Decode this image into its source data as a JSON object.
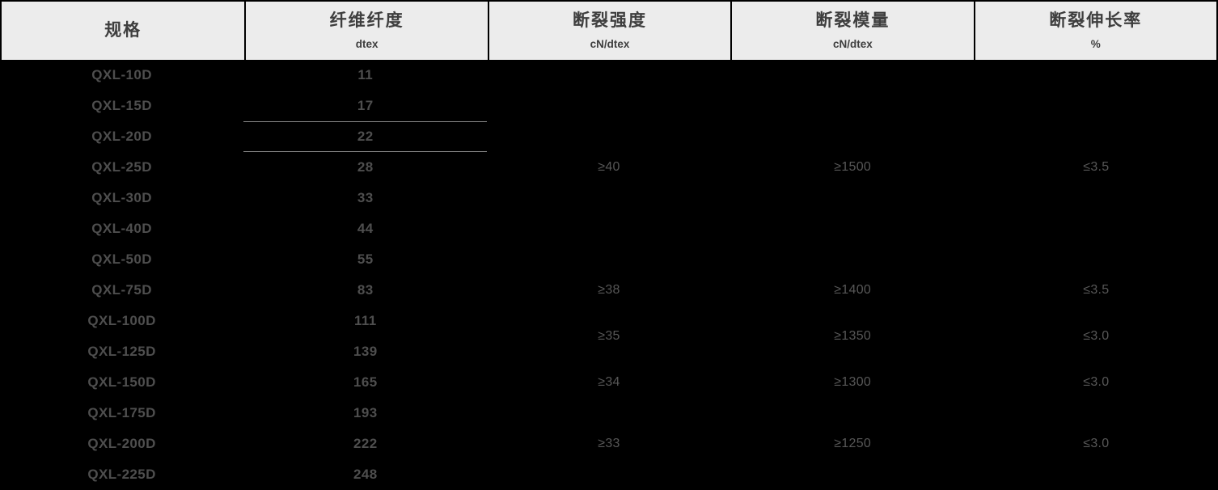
{
  "table": {
    "columns": [
      {
        "title": "规格",
        "unit": ""
      },
      {
        "title": "纤维纤度",
        "unit": "dtex"
      },
      {
        "title": "断裂强度",
        "unit": "cN/dtex"
      },
      {
        "title": "断裂模量",
        "unit": "cN/dtex"
      },
      {
        "title": "断裂伸长率",
        "unit": "%"
      }
    ],
    "rows": [
      {
        "spec": "QXL-10D",
        "dtex": "11"
      },
      {
        "spec": "QXL-15D",
        "dtex": "17"
      },
      {
        "spec": "QXL-20D",
        "dtex": "22"
      },
      {
        "spec": "QXL-25D",
        "dtex": "28"
      },
      {
        "spec": "QXL-30D",
        "dtex": "33"
      },
      {
        "spec": "QXL-40D",
        "dtex": "44"
      },
      {
        "spec": "QXL-50D",
        "dtex": "55"
      },
      {
        "spec": "QXL-75D",
        "dtex": "83"
      },
      {
        "spec": "QXL-100D",
        "dtex": "111"
      },
      {
        "spec": "QXL-125D",
        "dtex": "139"
      },
      {
        "spec": "QXL-150D",
        "dtex": "165"
      },
      {
        "spec": "QXL-175D",
        "dtex": "193"
      },
      {
        "spec": "QXL-200D",
        "dtex": "222"
      },
      {
        "spec": "QXL-225D",
        "dtex": "248"
      }
    ],
    "merged_groups": [
      {
        "covers_rows": "QXL-10D to QXL-50D",
        "row_start": 1,
        "row_span": 7,
        "strength": "≥40",
        "modulus": "≥1500",
        "elongation": "≤3.5"
      },
      {
        "covers_rows": "QXL-75D",
        "row_start": 8,
        "row_span": 1,
        "strength": "≥38",
        "modulus": "≥1400",
        "elongation": "≤3.5"
      },
      {
        "covers_rows": "QXL-100D to QXL-125D",
        "row_start": 9,
        "row_span": 2,
        "strength": "≥35",
        "modulus": "≥1350",
        "elongation": "≤3.0"
      },
      {
        "covers_rows": "QXL-150D",
        "row_start": 11,
        "row_span": 1,
        "strength": "≥34",
        "modulus": "≥1300",
        "elongation": "≤3.0"
      },
      {
        "covers_rows": "QXL-175D to QXL-225D",
        "row_start": 12,
        "row_span": 3,
        "strength": "≥33",
        "modulus": "≥1250",
        "elongation": "≤3.0"
      }
    ],
    "colors": {
      "page_background": "#000000",
      "header_background": "#ececec",
      "header_text": "#3e3e3e",
      "header_divider": "#000000",
      "body_text": "#4e4e4e",
      "merged_value_text": "#575757",
      "cell_rule_line": "#8a8a8a"
    }
  }
}
